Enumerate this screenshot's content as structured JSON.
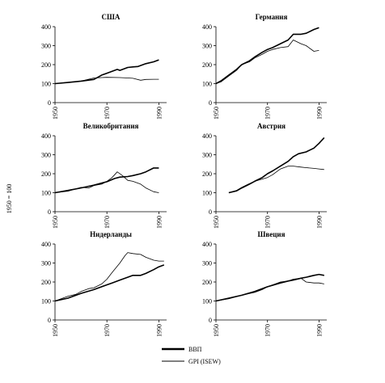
{
  "y_axis_label": "1950 = 100",
  "legend": {
    "gdp_label": "ВВП",
    "gpi_label": "GPI (ISEW)"
  },
  "chart_data": [
    {
      "type": "line",
      "title": "США",
      "xlim": [
        1950,
        1993
      ],
      "ylim": [
        0,
        400
      ],
      "x_ticks": [
        1950,
        1970,
        1990
      ],
      "y_ticks": [
        0,
        100,
        200,
        300,
        400
      ],
      "series": [
        {
          "name": "ВВП",
          "x": [
            1950,
            1955,
            1960,
            1965,
            1968,
            1970,
            1972,
            1974,
            1975,
            1978,
            1980,
            1982,
            1985,
            1988,
            1990
          ],
          "values": [
            100,
            106,
            113,
            122,
            145,
            155,
            165,
            175,
            170,
            185,
            188,
            190,
            205,
            215,
            225
          ]
        },
        {
          "name": "GPI (ISEW)",
          "x": [
            1950,
            1955,
            1960,
            1965,
            1970,
            1975,
            1978,
            1980,
            1983,
            1985,
            1988,
            1990
          ],
          "values": [
            100,
            107,
            113,
            130,
            133,
            132,
            130,
            128,
            118,
            122,
            123,
            123
          ]
        }
      ]
    },
    {
      "type": "line",
      "title": "Германия",
      "xlim": [
        1950,
        1993
      ],
      "ylim": [
        0,
        400
      ],
      "x_ticks": [
        1950,
        1970,
        1990
      ],
      "y_ticks": [
        0,
        100,
        200,
        300,
        400
      ],
      "series": [
        {
          "name": "ВВП",
          "x": [
            1950,
            1952,
            1955,
            1958,
            1960,
            1963,
            1965,
            1968,
            1970,
            1972,
            1975,
            1978,
            1980,
            1983,
            1985,
            1988,
            1990
          ],
          "values": [
            100,
            115,
            145,
            175,
            200,
            220,
            240,
            265,
            280,
            290,
            310,
            330,
            360,
            360,
            365,
            385,
            395
          ]
        },
        {
          "name": "GPI (ISEW)",
          "x": [
            1950,
            1952,
            1955,
            1958,
            1960,
            1963,
            1965,
            1968,
            1970,
            1972,
            1975,
            1978,
            1980,
            1983,
            1985,
            1988,
            1990
          ],
          "values": [
            100,
            110,
            140,
            170,
            200,
            215,
            235,
            255,
            270,
            280,
            290,
            295,
            330,
            310,
            300,
            270,
            275
          ]
        }
      ]
    },
    {
      "type": "line",
      "title": "Великобритания",
      "xlim": [
        1950,
        1993
      ],
      "ylim": [
        0,
        400
      ],
      "x_ticks": [
        1950,
        1970,
        1990
      ],
      "y_ticks": [
        0,
        100,
        200,
        300,
        400
      ],
      "series": [
        {
          "name": "ВВП",
          "x": [
            1950,
            1955,
            1960,
            1965,
            1970,
            1973,
            1975,
            1978,
            1980,
            1983,
            1985,
            1988,
            1990
          ],
          "values": [
            100,
            112,
            125,
            140,
            158,
            175,
            182,
            185,
            190,
            200,
            210,
            230,
            230
          ]
        },
        {
          "name": "GPI (ISEW)",
          "x": [
            1950,
            1955,
            1960,
            1963,
            1965,
            1968,
            1970,
            1972,
            1974,
            1976,
            1978,
            1980,
            1983,
            1985,
            1988,
            1990
          ],
          "values": [
            100,
            108,
            128,
            125,
            138,
            145,
            160,
            180,
            210,
            190,
            165,
            160,
            145,
            125,
            105,
            100
          ]
        }
      ]
    },
    {
      "type": "line",
      "title": "Австрия",
      "xlim": [
        1950,
        1993
      ],
      "ylim": [
        0,
        400
      ],
      "x_ticks": [
        1950,
        1970,
        1990
      ],
      "y_ticks": [
        0,
        100,
        200,
        300,
        400
      ],
      "series": [
        {
          "name": "ВВП",
          "x": [
            1955,
            1958,
            1960,
            1963,
            1965,
            1968,
            1970,
            1972,
            1975,
            1978,
            1980,
            1982,
            1985,
            1988,
            1990,
            1992
          ],
          "values": [
            100,
            110,
            125,
            145,
            160,
            180,
            200,
            215,
            240,
            265,
            290,
            305,
            315,
            335,
            360,
            390
          ]
        },
        {
          "name": "GPI (ISEW)",
          "x": [
            1955,
            1958,
            1960,
            1963,
            1965,
            1968,
            1970,
            1972,
            1975,
            1978,
            1980,
            1983,
            1985,
            1988,
            1990,
            1992
          ],
          "values": [
            100,
            112,
            128,
            148,
            160,
            172,
            180,
            195,
            225,
            240,
            240,
            235,
            232,
            228,
            225,
            222
          ]
        }
      ]
    },
    {
      "type": "line",
      "title": "Нидерланды",
      "xlim": [
        1950,
        1993
      ],
      "ylim": [
        0,
        400
      ],
      "x_ticks": [
        1950,
        1970,
        1990
      ],
      "y_ticks": [
        0,
        100,
        200,
        300,
        400
      ],
      "series": [
        {
          "name": "ВВП",
          "x": [
            1950,
            1955,
            1960,
            1965,
            1970,
            1972,
            1975,
            1978,
            1980,
            1983,
            1985,
            1988,
            1990,
            1992
          ],
          "values": [
            100,
            115,
            140,
            160,
            185,
            195,
            210,
            225,
            235,
            235,
            245,
            265,
            280,
            290
          ]
        },
        {
          "name": "GPI (ISEW)",
          "x": [
            1950,
            1953,
            1955,
            1958,
            1960,
            1963,
            1965,
            1968,
            1970,
            1972,
            1975,
            1977,
            1978,
            1980,
            1983,
            1985,
            1988,
            1990,
            1992
          ],
          "values": [
            100,
            115,
            125,
            135,
            150,
            165,
            170,
            190,
            215,
            250,
            300,
            340,
            355,
            350,
            345,
            330,
            315,
            310,
            310
          ]
        }
      ]
    },
    {
      "type": "line",
      "title": "Швеция",
      "xlim": [
        1950,
        1993
      ],
      "ylim": [
        0,
        400
      ],
      "x_ticks": [
        1950,
        1970,
        1990
      ],
      "y_ticks": [
        0,
        100,
        200,
        300,
        400
      ],
      "series": [
        {
          "name": "ВВП",
          "x": [
            1950,
            1955,
            1960,
            1965,
            1970,
            1975,
            1978,
            1980,
            1983,
            1985,
            1988,
            1990,
            1992
          ],
          "values": [
            100,
            115,
            130,
            150,
            175,
            195,
            205,
            210,
            220,
            225,
            235,
            240,
            235
          ]
        },
        {
          "name": "GPI (ISEW)",
          "x": [
            1950,
            1955,
            1960,
            1965,
            1968,
            1970,
            1973,
            1975,
            1978,
            1980,
            1983,
            1985,
            1988,
            1990,
            1992
          ],
          "values": [
            100,
            112,
            130,
            145,
            160,
            175,
            190,
            200,
            205,
            215,
            220,
            200,
            195,
            195,
            190
          ]
        }
      ]
    }
  ]
}
